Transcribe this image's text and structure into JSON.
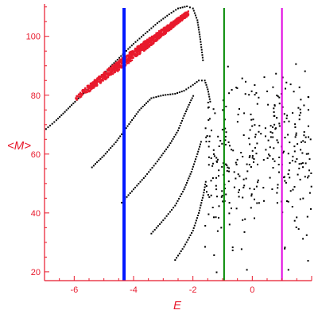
{
  "chart_data": {
    "type": "scatter",
    "xlabel": "E",
    "ylabel": "<M>",
    "xlim": [
      -7,
      2
    ],
    "ylim": [
      17,
      111
    ],
    "x_ticks": [
      -6,
      -4,
      -2,
      0
    ],
    "y_ticks": [
      20,
      40,
      60,
      80,
      100
    ],
    "grid": false,
    "colors": {
      "axis": "#e8192c",
      "highlight": "#e8192c",
      "points": "#000000",
      "blue_line": "#0018ff",
      "green_line": "#008800",
      "magenta_line": "#e000e0"
    },
    "vertical_lines": [
      {
        "color": "blue",
        "x": -4.32
      },
      {
        "color": "green",
        "x": -0.95
      },
      {
        "color": "magenta",
        "x": 1.0
      }
    ],
    "curves": [
      {
        "kind": "dotted",
        "points": [
          [
            -6.95,
            68.5
          ],
          [
            -6.6,
            71.5
          ],
          [
            -6.2,
            75.5
          ],
          [
            -5.8,
            79.5
          ],
          [
            -5.4,
            83.5
          ],
          [
            -5.0,
            87.5
          ],
          [
            -4.6,
            91.5
          ],
          [
            -4.3,
            94.5
          ],
          [
            -4.0,
            97.5
          ],
          [
            -3.6,
            101.0
          ],
          [
            -3.2,
            104.5
          ],
          [
            -2.8,
            107.5
          ],
          [
            -2.5,
            109.5
          ],
          [
            -2.2,
            110.2
          ],
          [
            -2.0,
            109.5
          ],
          [
            -1.85,
            105.5
          ],
          [
            -1.75,
            99.0
          ],
          [
            -1.65,
            91.0
          ]
        ]
      },
      {
        "kind": "dotted",
        "points": [
          [
            -5.4,
            55.5
          ],
          [
            -5.0,
            59.5
          ],
          [
            -4.6,
            64.0
          ],
          [
            -4.2,
            69.5
          ],
          [
            -3.8,
            75.0
          ],
          [
            -3.4,
            79.0
          ],
          [
            -3.0,
            80.0
          ],
          [
            -2.6,
            80.5
          ],
          [
            -2.3,
            81.5
          ],
          [
            -2.0,
            83.5
          ],
          [
            -1.8,
            85.0
          ],
          [
            -1.6,
            85.0
          ],
          [
            -1.5,
            82.0
          ],
          [
            -1.4,
            77.0
          ]
        ]
      },
      {
        "kind": "dotted",
        "points": [
          [
            -4.4,
            43.5
          ],
          [
            -4.0,
            48.0
          ],
          [
            -3.6,
            52.5
          ],
          [
            -3.2,
            57.5
          ],
          [
            -2.8,
            63.0
          ],
          [
            -2.5,
            68.0
          ],
          [
            -2.3,
            73.0
          ],
          [
            -2.1,
            77.5
          ],
          [
            -1.95,
            80.5
          ]
        ]
      },
      {
        "kind": "dotted",
        "points": [
          [
            -3.4,
            33.0
          ],
          [
            -3.0,
            37.5
          ],
          [
            -2.6,
            42.5
          ],
          [
            -2.3,
            48.0
          ],
          [
            -2.05,
            54.0
          ],
          [
            -1.85,
            60.0
          ],
          [
            -1.7,
            65.0
          ]
        ]
      },
      {
        "kind": "dotted",
        "points": [
          [
            -2.6,
            24.0
          ],
          [
            -2.3,
            28.5
          ],
          [
            -2.0,
            34.0
          ],
          [
            -1.8,
            40.0
          ],
          [
            -1.65,
            46.0
          ],
          [
            -1.55,
            51.5
          ]
        ]
      }
    ],
    "highlight_band": {
      "from": [
        -5.95,
        79.0
      ],
      "to": [
        -2.15,
        108.0
      ],
      "width": 1.3
    },
    "scatter_cloud": {
      "x_range": [
        -1.6,
        2.0
      ],
      "y_range": [
        18,
        92
      ],
      "count": 340
    }
  }
}
